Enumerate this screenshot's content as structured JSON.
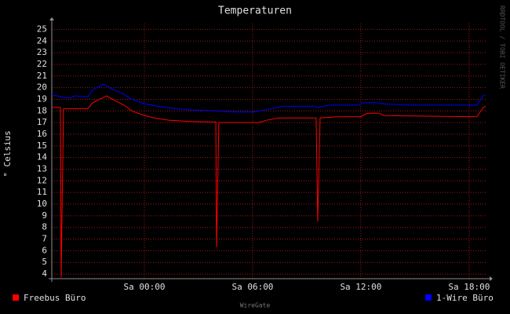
{
  "chart_data": {
    "type": "line",
    "title": "Temperaturen",
    "ylabel": "° Celsius",
    "watermark": "RRDTOOL / TOBI OETIKER",
    "footer": "WireGate",
    "xlim": [
      -5.13,
      18.96
    ],
    "ylim": [
      3.6,
      25.5
    ],
    "xticks": [
      {
        "value": 0,
        "label": "Sa 00:00"
      },
      {
        "value": 6,
        "label": "Sa 06:00"
      },
      {
        "value": 12,
        "label": "Sa 12:00"
      },
      {
        "value": 18,
        "label": "Sa 18:00"
      }
    ],
    "yticks": [
      4,
      5,
      6,
      7,
      8,
      9,
      10,
      11,
      12,
      13,
      14,
      15,
      16,
      17,
      18,
      19,
      20,
      21,
      22,
      23,
      24,
      25
    ],
    "grid": true,
    "series": [
      {
        "name": "Freebus Büro",
        "color": "#ff0000",
        "x": [
          -5.13,
          -4.65,
          -4.61,
          -4.48,
          -3.13,
          -2.87,
          -2.09,
          -1.65,
          -1.13,
          -0.7,
          -0.17,
          0.52,
          1.35,
          2.43,
          3.96,
          4.0,
          4.13,
          6.35,
          6.78,
          7.43,
          9.52,
          9.61,
          9.74,
          10.7,
          12.0,
          12.35,
          13.0,
          13.3,
          18.43,
          18.78,
          18.91
        ],
        "values": [
          18.3,
          18.3,
          3.7,
          18.2,
          18.2,
          18.7,
          19.3,
          18.9,
          18.5,
          18.0,
          17.7,
          17.4,
          17.2,
          17.1,
          17.05,
          6.3,
          17.0,
          17.0,
          17.2,
          17.4,
          17.4,
          8.5,
          17.4,
          17.5,
          17.5,
          17.8,
          17.8,
          17.6,
          17.5,
          18.3,
          18.4
        ]
      },
      {
        "name": "1-Wire Büro",
        "color": "#0000ff",
        "x": [
          -5.13,
          -4.61,
          -4.09,
          -3.87,
          -3.13,
          -2.87,
          -2.26,
          -1.83,
          -1.22,
          -0.7,
          0.04,
          1.13,
          2.43,
          3.96,
          5.04,
          6.0,
          6.78,
          7.65,
          9.39,
          9.61,
          10.26,
          11.91,
          12.09,
          12.87,
          13.3,
          14.61,
          18.43,
          18.78,
          18.91
        ],
        "values": [
          19.4,
          19.2,
          19.1,
          19.3,
          19.2,
          19.8,
          20.3,
          19.9,
          19.5,
          19.0,
          18.6,
          18.3,
          18.1,
          18.0,
          17.9,
          17.9,
          18.1,
          18.4,
          18.4,
          18.3,
          18.5,
          18.5,
          18.7,
          18.7,
          18.6,
          18.5,
          18.5,
          19.3,
          19.4
        ]
      }
    ]
  }
}
